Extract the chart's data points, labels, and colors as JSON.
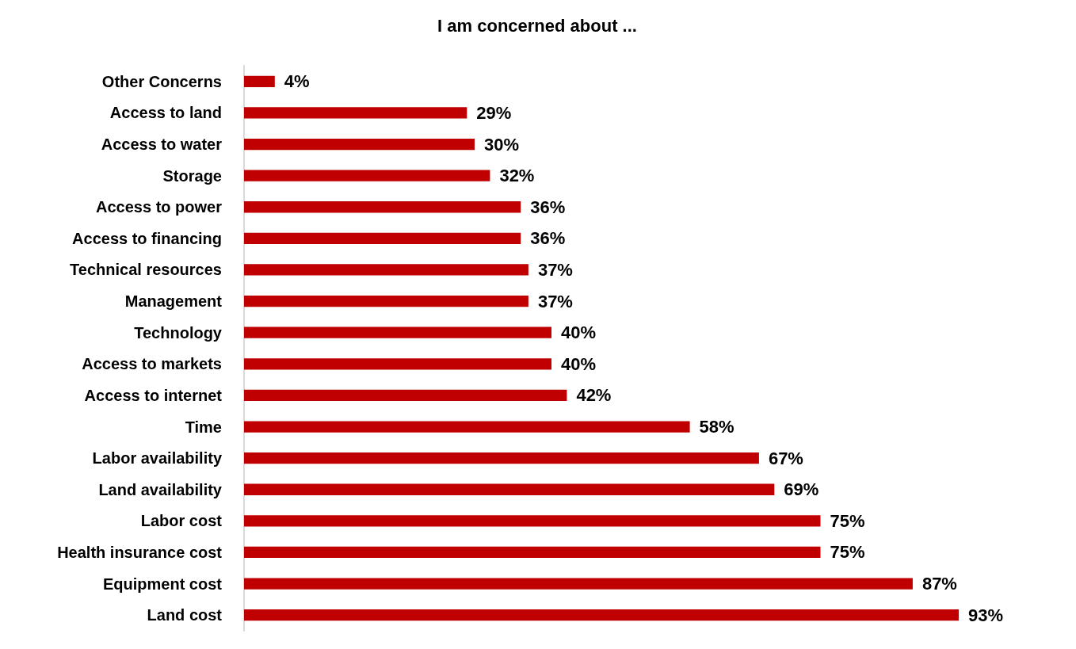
{
  "chart_data": {
    "type": "bar",
    "orientation": "horizontal",
    "title": "I am concerned about ...",
    "categories": [
      "Other Concerns",
      "Access to land",
      "Access to water",
      "Storage",
      "Access to power",
      "Access to financing",
      "Technical resources",
      "Management",
      "Technology",
      "Access to markets",
      "Access to internet",
      "Time",
      "Labor availability",
      "Land availability",
      "Labor cost",
      "Health insurance cost",
      "Equipment cost",
      "Land cost"
    ],
    "values": [
      4,
      29,
      30,
      32,
      36,
      36,
      37,
      37,
      40,
      40,
      42,
      58,
      67,
      69,
      75,
      75,
      87,
      93
    ],
    "value_labels": [
      "4%",
      "29%",
      "30%",
      "32%",
      "36%",
      "36%",
      "37%",
      "37%",
      "40%",
      "40%",
      "42%",
      "58%",
      "67%",
      "69%",
      "75%",
      "75%",
      "87%",
      "93%"
    ],
    "color": "#c00000",
    "tick_labels": "y"
  }
}
